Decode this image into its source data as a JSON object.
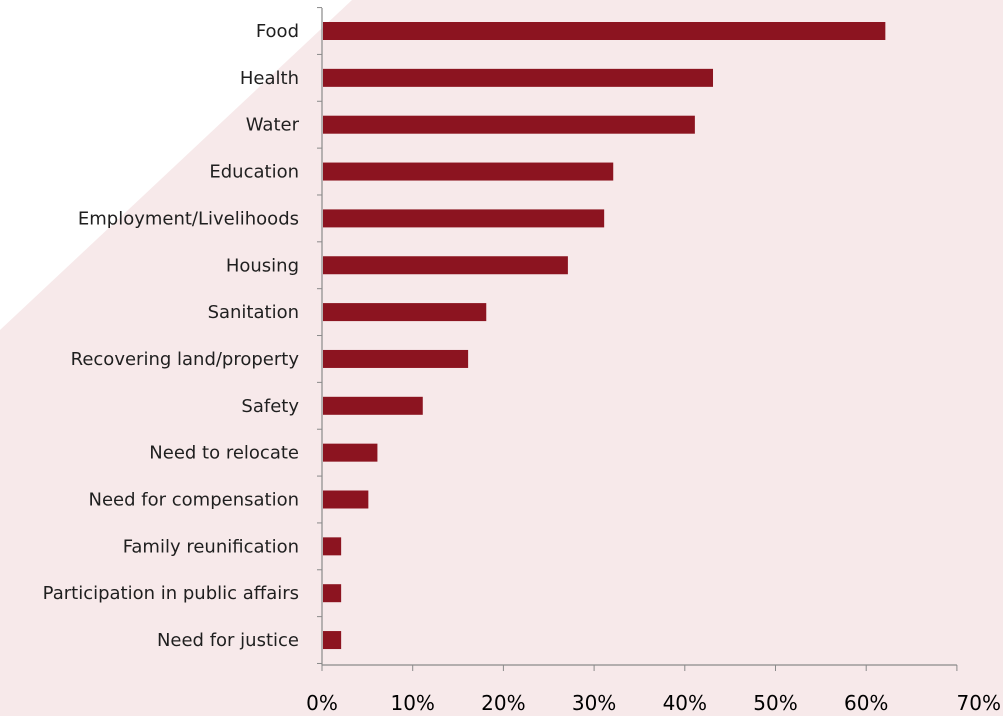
{
  "colors": {
    "panel_background": "#f7e9ea",
    "page_background": "#ffffff",
    "bar": "#8c1420",
    "axis": "#8a8a8a"
  },
  "chart_data": {
    "type": "bar",
    "orientation": "horizontal",
    "categories": [
      "Food",
      "Health",
      "Water",
      "Education",
      "Employment/Livelihoods",
      "Housing",
      "Sanitation",
      "Recovering land/property",
      "Safety",
      "Need to relocate",
      "Need for compensation",
      "Family reunification",
      "Participation in public affairs",
      "Need for justice"
    ],
    "values": [
      62,
      43,
      41,
      32,
      31,
      27,
      18,
      16,
      11,
      6,
      5,
      2,
      2,
      2
    ],
    "xlim": [
      0,
      70
    ],
    "x_ticks": [
      "0%",
      "10%",
      "20%",
      "30%",
      "40%",
      "50%",
      "60%",
      "70%"
    ],
    "grid": false,
    "legend": false
  }
}
